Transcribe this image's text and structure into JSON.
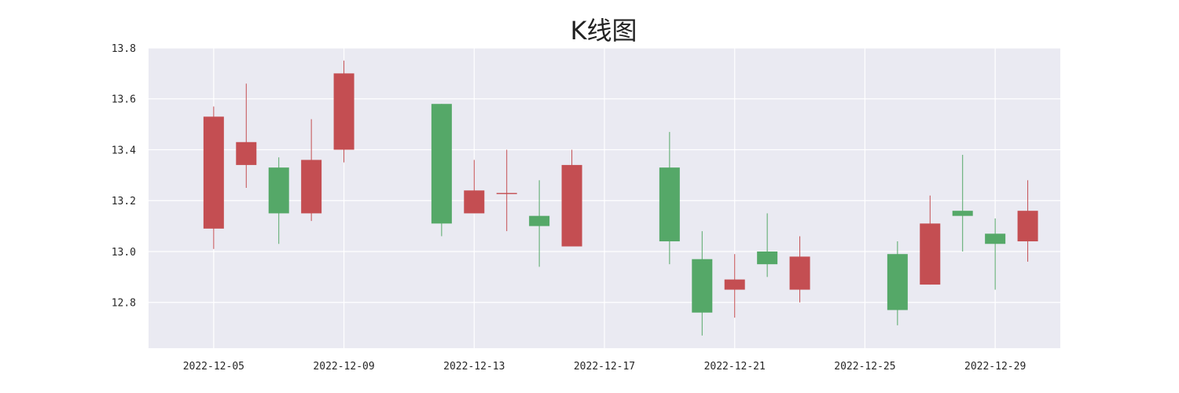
{
  "chart_data": {
    "type": "candlestick",
    "title": "K线图",
    "xlabel": "",
    "ylabel": "",
    "ylim": [
      12.62,
      13.8
    ],
    "xlim": [
      "2022-12-03",
      "2022-12-31"
    ],
    "x_ticks": [
      "2022-12-05",
      "2022-12-09",
      "2022-12-13",
      "2022-12-17",
      "2022-12-21",
      "2022-12-25",
      "2022-12-29"
    ],
    "y_ticks": [
      12.8,
      13.0,
      13.2,
      13.4,
      13.6,
      13.8
    ],
    "y_tick_labels": [
      "12.8",
      "13.0",
      "13.2",
      "13.4",
      "13.6",
      "13.8"
    ],
    "grid": true,
    "colors": {
      "up": "#c44e52",
      "down": "#55a868",
      "plot_background": "#eaeaf2",
      "grid": "#ffffff"
    },
    "candles": [
      {
        "date": "2022-12-05",
        "open": 13.09,
        "high": 13.57,
        "low": 13.01,
        "close": 13.53
      },
      {
        "date": "2022-12-06",
        "open": 13.34,
        "high": 13.66,
        "low": 13.25,
        "close": 13.43
      },
      {
        "date": "2022-12-07",
        "open": 13.33,
        "high": 13.37,
        "low": 13.03,
        "close": 13.15
      },
      {
        "date": "2022-12-08",
        "open": 13.15,
        "high": 13.52,
        "low": 13.12,
        "close": 13.36
      },
      {
        "date": "2022-12-09",
        "open": 13.4,
        "high": 13.75,
        "low": 13.35,
        "close": 13.7
      },
      {
        "date": "2022-12-12",
        "open": 13.58,
        "high": 13.58,
        "low": 13.06,
        "close": 13.11
      },
      {
        "date": "2022-12-13",
        "open": 13.15,
        "high": 13.36,
        "low": 13.15,
        "close": 13.24
      },
      {
        "date": "2022-12-14",
        "open": 13.23,
        "high": 13.4,
        "low": 13.08,
        "close": 13.23
      },
      {
        "date": "2022-12-15",
        "open": 13.14,
        "high": 13.28,
        "low": 12.94,
        "close": 13.1
      },
      {
        "date": "2022-12-16",
        "open": 13.02,
        "high": 13.4,
        "low": 13.02,
        "close": 13.34
      },
      {
        "date": "2022-12-19",
        "open": 13.33,
        "high": 13.47,
        "low": 12.95,
        "close": 13.04
      },
      {
        "date": "2022-12-20",
        "open": 12.97,
        "high": 13.08,
        "low": 12.67,
        "close": 12.76
      },
      {
        "date": "2022-12-21",
        "open": 12.85,
        "high": 12.99,
        "low": 12.74,
        "close": 12.89
      },
      {
        "date": "2022-12-22",
        "open": 13.0,
        "high": 13.15,
        "low": 12.9,
        "close": 12.95
      },
      {
        "date": "2022-12-23",
        "open": 12.85,
        "high": 13.06,
        "low": 12.8,
        "close": 12.98
      },
      {
        "date": "2022-12-26",
        "open": 12.99,
        "high": 13.04,
        "low": 12.71,
        "close": 12.77
      },
      {
        "date": "2022-12-27",
        "open": 12.87,
        "high": 13.22,
        "low": 12.87,
        "close": 13.11
      },
      {
        "date": "2022-12-28",
        "open": 13.16,
        "high": 13.38,
        "low": 13.0,
        "close": 13.14
      },
      {
        "date": "2022-12-29",
        "open": 13.07,
        "high": 13.13,
        "low": 12.85,
        "close": 13.03
      },
      {
        "date": "2022-12-30",
        "open": 13.04,
        "high": 13.28,
        "low": 12.96,
        "close": 13.16
      }
    ]
  }
}
